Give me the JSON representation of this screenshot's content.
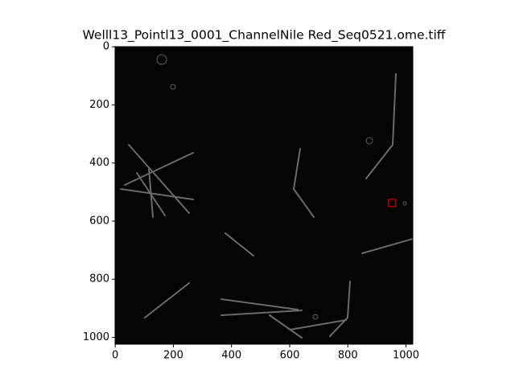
{
  "chart_data": {
    "type": "image",
    "title": "Welll13_Pointl13_0001_ChannelNile Red_Seq0521.ome.tiff",
    "xlim": [
      -0.5,
      1023.5
    ],
    "ylim": [
      1023.5,
      -0.5
    ],
    "xticks": [
      0,
      200,
      400,
      600,
      800,
      1000
    ],
    "yticks": [
      0,
      200,
      400,
      600,
      800,
      1000
    ],
    "highlight": {
      "x": 940,
      "y": 525,
      "width": 25,
      "height": 25,
      "color": "#ff0000"
    }
  }
}
